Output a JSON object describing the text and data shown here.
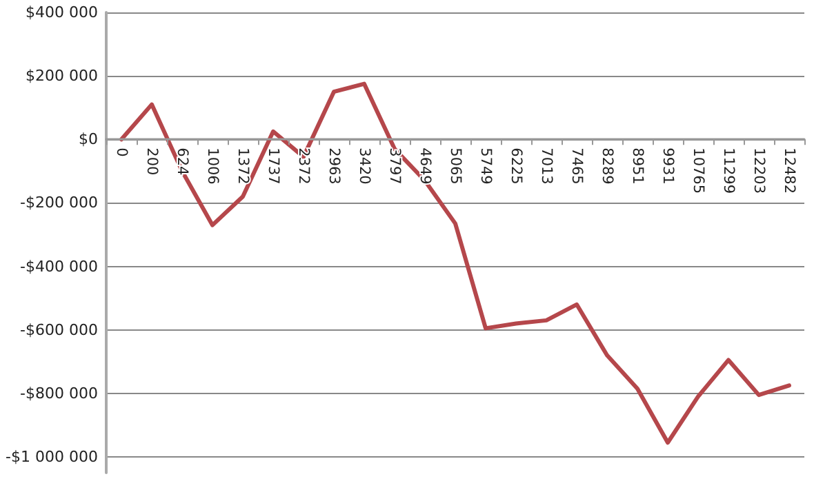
{
  "chart_data": {
    "type": "line",
    "categories": [
      "0",
      "200",
      "624",
      "1006",
      "1372",
      "1737",
      "2372",
      "2963",
      "3420",
      "3797",
      "4649",
      "5065",
      "5749",
      "6225",
      "7013",
      "7465",
      "8289",
      "8951",
      "9931",
      "10765",
      "11299",
      "12203",
      "12482"
    ],
    "series": [
      {
        "color": "#b5474b",
        "values": [
          0,
          110000,
          -100000,
          -270000,
          -180000,
          25000,
          -55000,
          150000,
          175000,
          -30000,
          -130000,
          -265000,
          -595000,
          -580000,
          -570000,
          -520000,
          -680000,
          -785000,
          -955000,
          -810000,
          -695000,
          -805000,
          -775000
        ]
      }
    ],
    "ylim": [
      -1050000,
      400000
    ],
    "yticks": [
      {
        "value": 400000,
        "label": "$400 000"
      },
      {
        "value": 200000,
        "label": "$200 000"
      },
      {
        "value": 0,
        "label": "$0"
      },
      {
        "value": -200000,
        "label": "-$200 000"
      },
      {
        "value": -400000,
        "label": "-$400 000"
      },
      {
        "value": -600000,
        "label": "-$600 000"
      },
      {
        "value": -800000,
        "label": "-$800 000"
      },
      {
        "value": -1000000,
        "label": "-$1 000 000"
      }
    ],
    "grid": "y",
    "marker": "none",
    "line_style": "solid"
  }
}
